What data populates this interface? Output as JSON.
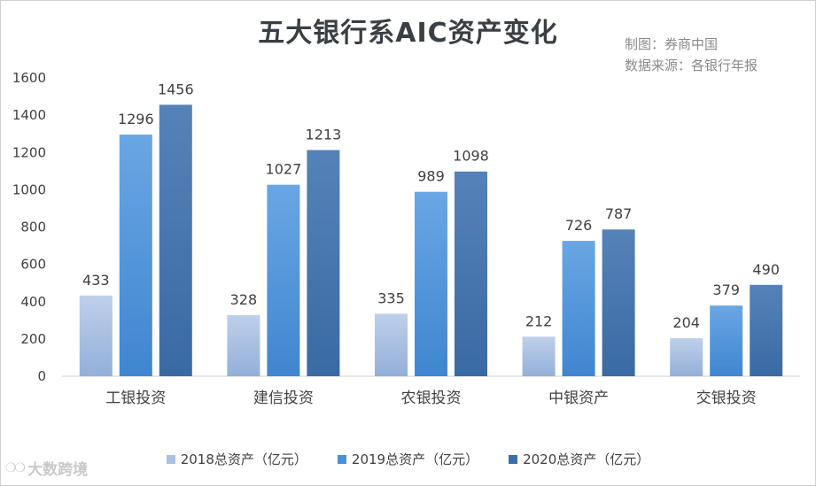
{
  "title": "五大银行系AIC资产变化",
  "credit": {
    "line1": "制图：券商中国",
    "line2": "数据来源：各银行年报"
  },
  "watermark": {
    "text": "大数跨境"
  },
  "legend": [
    {
      "label": "2018总资产（亿元）",
      "color": "#a9c1e4"
    },
    {
      "label": "2019总资产（亿元）",
      "color": "#4a8fd6"
    },
    {
      "label": "2020总资产（亿元）",
      "color": "#3a6ea8"
    }
  ],
  "chart_data": {
    "type": "bar",
    "title": "五大银行系AIC资产变化",
    "categories": [
      "工银投资",
      "建信投资",
      "农银投资",
      "中银资产",
      "交银投资"
    ],
    "series": [
      {
        "name": "2018总资产（亿元）",
        "values": [
          433,
          328,
          335,
          212,
          204
        ]
      },
      {
        "name": "2019总资产（亿元）",
        "values": [
          1296,
          1027,
          989,
          726,
          379
        ]
      },
      {
        "name": "2020总资产（亿元）",
        "values": [
          1456,
          1213,
          1098,
          787,
          490
        ]
      }
    ],
    "ylim": [
      0,
      1600
    ],
    "yticks": [
      0,
      200,
      400,
      600,
      800,
      1000,
      1200,
      1400,
      1600
    ],
    "grid": false,
    "legend_position": "bottom",
    "data_labels": true
  }
}
